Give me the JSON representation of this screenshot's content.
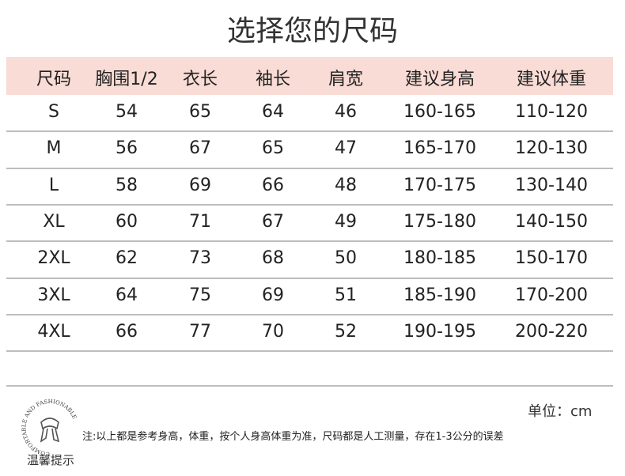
{
  "title": "选择您的尺码",
  "table": {
    "header": [
      "尺码",
      "胸围1/2",
      "衣长",
      "袖长",
      "肩宽",
      "建议身高",
      "建议体重"
    ],
    "rows": [
      [
        "S",
        "54",
        "65",
        "64",
        "46",
        "160-165",
        "110-120"
      ],
      [
        "M",
        "56",
        "67",
        "65",
        "47",
        "165-170",
        "120-130"
      ],
      [
        "L",
        "58",
        "69",
        "66",
        "48",
        "170-175",
        "130-140"
      ],
      [
        "XL",
        "60",
        "71",
        "67",
        "49",
        "175-180",
        "140-150"
      ],
      [
        "2XL",
        "62",
        "73",
        "68",
        "50",
        "180-185",
        "150-170"
      ],
      [
        "3XL",
        "64",
        "75",
        "69",
        "51",
        "185-190",
        "170-200"
      ],
      [
        "4XL",
        "66",
        "77",
        "70",
        "52",
        "190-195",
        "200-220"
      ]
    ]
  },
  "footer": {
    "unit": "单位：cm",
    "note": "注:以上都是参考身高，体重，按个人身高体重为准，尺码都是人工测量，存在1-3公分的误差",
    "logo_text": "COMFORTABLE AND FASHIONABLE",
    "tip": "温馨提示"
  }
}
